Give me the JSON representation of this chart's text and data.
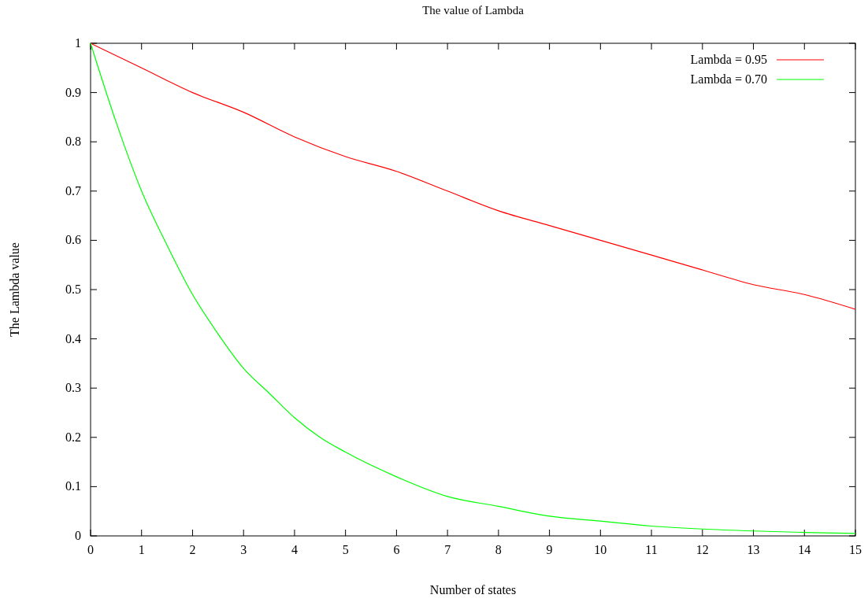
{
  "chart_data": {
    "type": "line",
    "title": "The value of Lambda",
    "xlabel": "Number of states",
    "ylabel": "The Lambda value",
    "xlim": [
      0,
      15
    ],
    "xticks": [
      0,
      1,
      2,
      3,
      4,
      5,
      6,
      7,
      8,
      9,
      10,
      11,
      12,
      13,
      14,
      15
    ],
    "ylim": [
      0,
      1
    ],
    "yticks": [
      0,
      0.1,
      0.2,
      0.3,
      0.4,
      0.5,
      0.6,
      0.7,
      0.8,
      0.9,
      1
    ],
    "grid": false,
    "legend": "top right",
    "series": [
      {
        "name": "Lambda = 0.95",
        "color": "#ff0000",
        "x": [
          0,
          1,
          2,
          3,
          4,
          5,
          6,
          7,
          8,
          9,
          10,
          11,
          12,
          13,
          14,
          15
        ],
        "values": [
          1,
          0.95,
          0.9,
          0.86,
          0.81,
          0.77,
          0.74,
          0.7,
          0.66,
          0.63,
          0.6,
          0.57,
          0.54,
          0.51,
          0.49,
          0.46
        ]
      },
      {
        "name": "Lambda = 0.70",
        "color": "#00ff00",
        "x": [
          0,
          0.5,
          1,
          1.5,
          2,
          2.5,
          3,
          3.5,
          4,
          4.5,
          5,
          6,
          7,
          8,
          9,
          10,
          11,
          12,
          13,
          14,
          15
        ],
        "values": [
          1,
          0.84,
          0.7,
          0.59,
          0.49,
          0.41,
          0.34,
          0.29,
          0.24,
          0.2,
          0.17,
          0.12,
          0.08,
          0.06,
          0.04,
          0.03,
          0.02,
          0.014,
          0.01,
          0.007,
          0.005
        ]
      }
    ]
  }
}
